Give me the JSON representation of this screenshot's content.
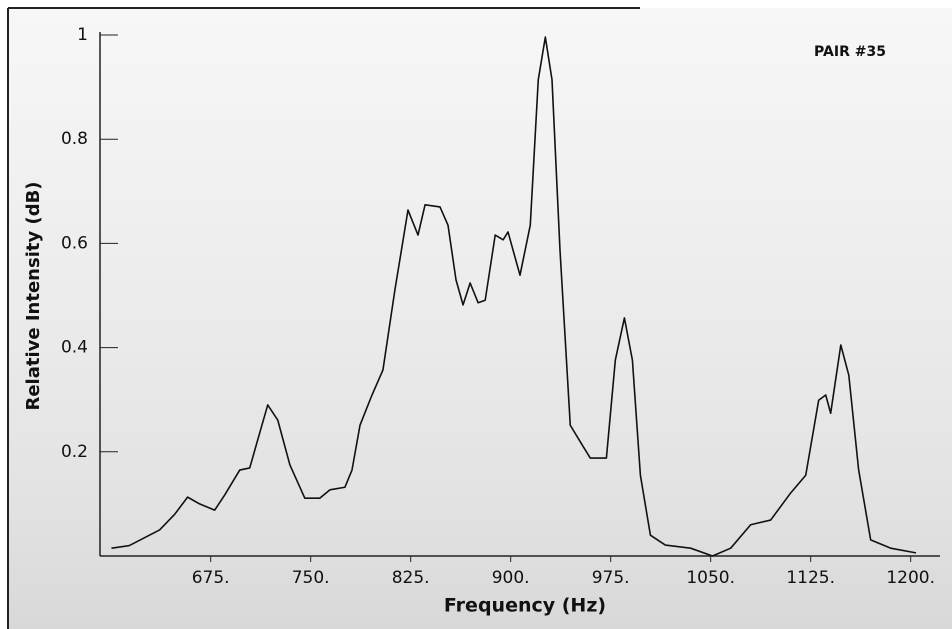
{
  "chart_data": {
    "type": "line",
    "x_label": "Frequency (Hz)",
    "y_label": "Relative Intensity (dB)",
    "annotation": "PAIR #35",
    "xlim": [
      592,
      1222
    ],
    "ylim": [
      0,
      1
    ],
    "xticks": [
      {
        "value": 675,
        "label": "675."
      },
      {
        "value": 750,
        "label": "750."
      },
      {
        "value": 825,
        "label": "825."
      },
      {
        "value": 900,
        "label": "900."
      },
      {
        "value": 975,
        "label": "975."
      },
      {
        "value": 1050,
        "label": "1050."
      },
      {
        "value": 1125,
        "label": "1125."
      },
      {
        "value": 1200,
        "label": "1200."
      }
    ],
    "yticks": [
      0.2,
      0.4,
      0.6,
      0.8,
      1
    ],
    "series": [
      {
        "color": "#111111",
        "x": [
          600.6,
          614,
          636.7,
          648,
          657.7,
          666.7,
          678,
          685.5,
          696.8,
          704.3,
          710.3,
          717.8,
          725.3,
          734.4,
          745.6,
          756.9,
          764.4,
          775.7,
          781,
          787,
          796,
          804.2,
          813.2,
          823,
          830.5,
          835.8,
          847,
          853,
          859,
          864.3,
          869.6,
          875.6,
          880.9,
          888.4,
          894.4,
          898,
          907,
          914.7,
          920.7,
          926,
          931,
          937,
          944.7,
          953.7,
          959.7,
          971.8,
          978.5,
          985.3,
          991.3,
          997.3,
          1004.8,
          1016,
          1035,
          1051.4,
          1065,
          1080,
          1095,
          1110,
          1121.3,
          1131,
          1136.3,
          1140,
          1147.6,
          1153.6,
          1161,
          1170,
          1185,
          1204
        ],
        "values": [
          0.015,
          0.02,
          0.05,
          0.08,
          0.113,
          0.1,
          0.088,
          0.117,
          0.165,
          0.169,
          0.223,
          0.29,
          0.261,
          0.175,
          0.111,
          0.111,
          0.127,
          0.132,
          0.165,
          0.251,
          0.309,
          0.357,
          0.511,
          0.664,
          0.616,
          0.674,
          0.67,
          0.635,
          0.53,
          0.482,
          0.524,
          0.486,
          0.491,
          0.616,
          0.607,
          0.622,
          0.539,
          0.635,
          0.914,
          0.996,
          0.914,
          0.587,
          0.251,
          0.213,
          0.188,
          0.188,
          0.376,
          0.457,
          0.376,
          0.155,
          0.04,
          0.021,
          0.015,
          0,
          0.015,
          0.06,
          0.069,
          0.121,
          0.155,
          0.299,
          0.309,
          0.274,
          0.405,
          0.347,
          0.165,
          0.031,
          0.015,
          0.006
        ]
      }
    ]
  }
}
